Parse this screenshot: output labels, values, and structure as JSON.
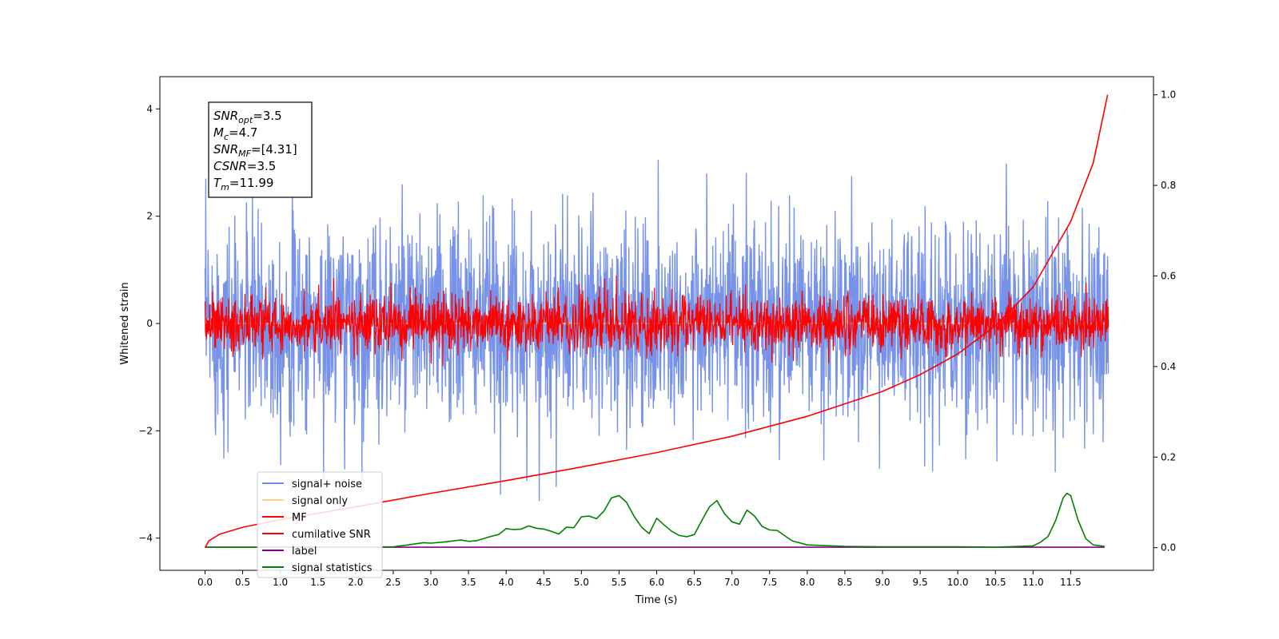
{
  "chart_data": {
    "type": "line",
    "xlabel": "Time (s)",
    "ylabel": "Whitened strain",
    "xlim": [
      -0.6,
      12.6
    ],
    "ylim": [
      -4.6,
      4.6
    ],
    "ylim_right": [
      -0.05,
      1.04
    ],
    "x_ticks": [
      0.0,
      0.5,
      1.0,
      1.5,
      2.0,
      2.5,
      3.0,
      3.5,
      4.0,
      4.5,
      5.0,
      5.5,
      6.0,
      6.5,
      7.0,
      7.5,
      8.0,
      8.5,
      9.0,
      9.5,
      10.0,
      10.5,
      11.0,
      11.5
    ],
    "x_tick_labels": [
      "0.0",
      "0.5",
      "1.0",
      "1.5",
      "2.0",
      "2.5",
      "3.0",
      "3.5",
      "4.0",
      "4.5",
      "5.0",
      "5.5",
      "6.0",
      "6.5",
      "7.0",
      "7.5",
      "8.0",
      "8.5",
      "9.0",
      "9.5",
      "10.0",
      "10.5",
      "11.0",
      "11.5"
    ],
    "y_ticks": [
      -4,
      -2,
      0,
      2,
      4
    ],
    "y_tick_labels": [
      "−4",
      "−2",
      "0",
      "2",
      "4"
    ],
    "y2_ticks": [
      0.0,
      0.2,
      0.4,
      0.6,
      0.8,
      1.0
    ],
    "y2_tick_labels": [
      "0.0",
      "0.2",
      "0.4",
      "0.6",
      "0.8",
      "1.0"
    ],
    "grid": false,
    "legend_position": "lower-left",
    "annotation": {
      "lines": [
        {
          "sym": "SNR",
          "sub": "opt",
          "val": "=3.5"
        },
        {
          "sym": "M",
          "sub": "c",
          "val": "=4.7"
        },
        {
          "sym": "SNR",
          "sub": "MF",
          "val": "=[4.31]"
        },
        {
          "sym": "CSNR",
          "sub": "",
          "val": "=3.5"
        },
        {
          "sym": "T",
          "sub": "m",
          "val": "=11.99"
        }
      ]
    },
    "series": [
      {
        "name": "signal+ noise",
        "color": "#6f8ce8",
        "axis": "left",
        "kind": "noise",
        "std": 0.95,
        "x_range": [
          0.0,
          12.0
        ]
      },
      {
        "name": "signal only",
        "color": "#ffd27f",
        "axis": "left",
        "kind": "flat",
        "x": [
          0.0,
          12.0
        ],
        "y": [
          0.0,
          0.0
        ]
      },
      {
        "name": "MF",
        "color": "#ff0000",
        "axis": "left",
        "kind": "noise",
        "std": 0.25,
        "x_range": [
          0.0,
          12.0
        ]
      },
      {
        "name": "cumilative SNR",
        "color": "#ff0000",
        "axis": "right",
        "x": [
          0.0,
          0.05,
          0.2,
          0.5,
          1.0,
          2.0,
          3.0,
          4.0,
          5.0,
          6.0,
          7.0,
          8.0,
          9.0,
          9.5,
          10.0,
          10.5,
          11.0,
          11.5,
          11.8,
          11.99
        ],
        "y": [
          0.0,
          0.015,
          0.03,
          0.045,
          0.062,
          0.09,
          0.12,
          0.148,
          0.178,
          0.21,
          0.246,
          0.29,
          0.345,
          0.382,
          0.428,
          0.49,
          0.575,
          0.72,
          0.85,
          1.0
        ]
      },
      {
        "name": "label",
        "color": "#800080",
        "axis": "right",
        "x": [
          0.0,
          11.95
        ],
        "y": [
          0.001,
          0.001
        ]
      },
      {
        "name": "signal statistics",
        "color": "#008000",
        "axis": "right",
        "x": [
          0.0,
          0.5,
          1.0,
          1.5,
          2.0,
          2.5,
          2.7,
          2.9,
          3.0,
          3.2,
          3.4,
          3.5,
          3.6,
          3.8,
          3.9,
          4.0,
          4.1,
          4.2,
          4.3,
          4.4,
          4.5,
          4.6,
          4.7,
          4.8,
          4.9,
          5.0,
          5.1,
          5.2,
          5.3,
          5.4,
          5.5,
          5.6,
          5.7,
          5.8,
          5.9,
          6.0,
          6.1,
          6.2,
          6.3,
          6.4,
          6.5,
          6.6,
          6.7,
          6.8,
          6.9,
          7.0,
          7.1,
          7.2,
          7.3,
          7.4,
          7.5,
          7.6,
          7.8,
          8.0,
          8.5,
          9.0,
          9.5,
          10.0,
          10.5,
          11.0,
          11.1,
          11.2,
          11.3,
          11.4,
          11.45,
          11.5,
          11.6,
          11.7,
          11.8,
          11.95
        ],
        "y": [
          0.001,
          0.001,
          0.001,
          0.001,
          0.001,
          0.002,
          0.006,
          0.011,
          0.01,
          0.013,
          0.017,
          0.014,
          0.015,
          0.025,
          0.029,
          0.042,
          0.04,
          0.041,
          0.048,
          0.043,
          0.041,
          0.036,
          0.03,
          0.045,
          0.044,
          0.068,
          0.07,
          0.064,
          0.081,
          0.11,
          0.115,
          0.1,
          0.069,
          0.045,
          0.031,
          0.065,
          0.05,
          0.036,
          0.027,
          0.024,
          0.029,
          0.06,
          0.09,
          0.104,
          0.075,
          0.057,
          0.052,
          0.083,
          0.07,
          0.047,
          0.039,
          0.038,
          0.015,
          0.006,
          0.003,
          0.002,
          0.002,
          0.002,
          0.001,
          0.004,
          0.012,
          0.025,
          0.06,
          0.11,
          0.12,
          0.115,
          0.06,
          0.02,
          0.006,
          0.003
        ]
      }
    ]
  }
}
